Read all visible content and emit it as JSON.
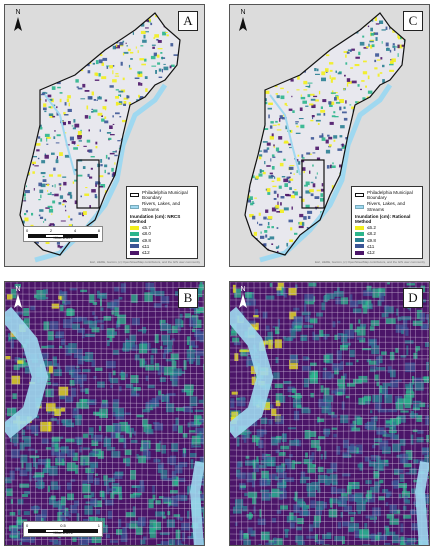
{
  "panels": [
    {
      "id": "A",
      "letter": "A",
      "kind": "overview"
    },
    {
      "id": "C",
      "letter": "C",
      "kind": "overview"
    },
    {
      "id": "B",
      "letter": "B",
      "kind": "detail"
    },
    {
      "id": "D",
      "letter": "D",
      "kind": "detail"
    }
  ],
  "north_label": "N",
  "legend_A": {
    "boundary_label": "Philadelphia Municipal Boundary",
    "water_label": "Rivers, Lakes, and Streams",
    "title": "Inundation (cm): NRCS Method",
    "classes": [
      "≤5.7",
      "≤8.0",
      "≤9.8",
      "≤11",
      "≤12"
    ]
  },
  "legend_C": {
    "boundary_label": "Philadelphia Municipal Boundary",
    "water_label": "Rivers, Lakes, and Streams",
    "title": "Inundation (cm): Rational Method",
    "classes": [
      "≤6.2",
      "≤8.2",
      "≤9.8",
      "≤11",
      "≤12"
    ]
  },
  "class_colors": [
    "#f2ee1c",
    "#2bb58c",
    "#2a7f92",
    "#3b5595",
    "#4b1568"
  ],
  "water_color": "#9fd8f0",
  "scale_overview": {
    "ticks": [
      "0",
      "2",
      "4",
      "8"
    ],
    "unit": "Kilometers"
  },
  "scale_detail": {
    "ticks": [
      "0",
      "0.5",
      "1"
    ],
    "unit": "Kilometers"
  },
  "credit": "Esri, HERE, Garmin, (c) OpenStreetMap contributors, and the GIS user community"
}
